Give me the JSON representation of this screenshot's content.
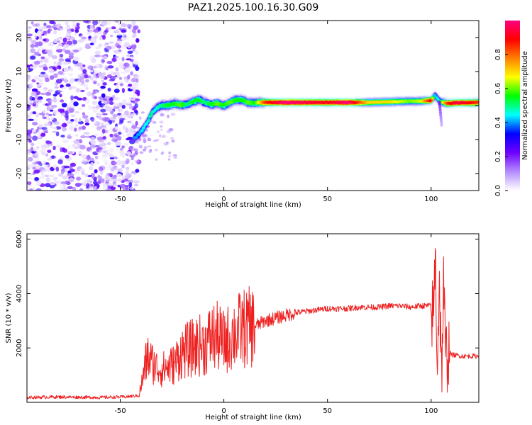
{
  "title": "PAZ1.2025.100.16.30.G09",
  "chart_data": [
    {
      "type": "heatmap",
      "xlabel": "Height of straight line (km)",
      "ylabel": "Frequency (Hz)",
      "xlim": [
        -95,
        123
      ],
      "ylim": [
        -25,
        25
      ],
      "xticks": [
        -50,
        0,
        50,
        100
      ],
      "yticks": [
        -20,
        -10,
        0,
        10,
        20
      ],
      "colorbar": {
        "label": "Normalized spectral amplitude",
        "range": [
          0,
          1
        ],
        "ticks": [
          0.0,
          0.2,
          0.4,
          0.6,
          0.8
        ],
        "colors": [
          "#ffffff",
          "#b48cff",
          "#7000ff",
          "#0000ff",
          "#00ffff",
          "#00ff00",
          "#ffff00",
          "#ff7f00",
          "#ff0000",
          "#ff0080"
        ]
      },
      "noise_region_x": [
        -95,
        -43
      ],
      "ridge": {
        "x": [
          -43,
          -41,
          -39,
          -37,
          -35,
          -33,
          -30,
          -27,
          -24,
          -21,
          -18,
          -15,
          -12,
          -9,
          -6,
          -3,
          0,
          3,
          6,
          9,
          12,
          15,
          20,
          30,
          40,
          50,
          60,
          70,
          80,
          90,
          95,
          100,
          102,
          104,
          108,
          112,
          118,
          123
        ],
        "freq": [
          -9.5,
          -8.5,
          -7,
          -5,
          -2.5,
          -1,
          0,
          0,
          0.5,
          0.2,
          0.3,
          1.1,
          1.7,
          0.8,
          0.3,
          0.7,
          0,
          0.9,
          1.7,
          1.6,
          0.8,
          0.8,
          0.9,
          0.9,
          0.9,
          0.9,
          0.9,
          0.9,
          1.1,
          1.3,
          1.3,
          1.5,
          3,
          1.2,
          0.6,
          0.8,
          0.8,
          0.9
        ],
        "amp": [
          0.4,
          0.4,
          0.45,
          0.45,
          0.5,
          0.45,
          0.5,
          0.55,
          0.55,
          0.6,
          0.5,
          0.55,
          0.55,
          0.5,
          0.55,
          0.6,
          0.55,
          0.6,
          0.55,
          0.55,
          0.6,
          0.55,
          0.85,
          1.0,
          0.95,
          0.9,
          1.0,
          0.7,
          0.7,
          0.6,
          0.65,
          0.9,
          0.4,
          0.5,
          0.85,
          0.95,
          0.9,
          0.85
        ]
      }
    },
    {
      "type": "line",
      "xlabel": "Height of straight line (km)",
      "ylabel": "SNR (10 * v/v)",
      "xlim": [
        -95,
        123
      ],
      "ylim": [
        0,
        6200
      ],
      "xticks": [
        -50,
        0,
        50,
        100
      ],
      "yticks": [
        2000,
        4000,
        6000
      ],
      "color": "#ee2020",
      "series": [
        {
          "x": [
            -95,
            -80,
            -60,
            -48,
            -41,
            -39,
            -37,
            -35,
            -33,
            -30,
            -27,
            -24,
            -21,
            -18,
            -15,
            -12,
            -9,
            -6,
            -3,
            0,
            3,
            6,
            9,
            12,
            15,
            20,
            25,
            30,
            35,
            40,
            45,
            50,
            55,
            60,
            65,
            70,
            75,
            80,
            85,
            90,
            95,
            100,
            101,
            102,
            103,
            104,
            105,
            106,
            107,
            108,
            110,
            115,
            120,
            123
          ],
          "y": [
            180,
            200,
            180,
            200,
            250,
            900,
            1700,
            1500,
            1300,
            1200,
            1300,
            1400,
            1800,
            1900,
            2000,
            2100,
            2100,
            2400,
            2400,
            2200,
            2400,
            2600,
            2700,
            2750,
            2800,
            3000,
            3100,
            3200,
            3300,
            3350,
            3400,
            3450,
            3450,
            3450,
            3500,
            3500,
            3500,
            3550,
            3550,
            3500,
            3550,
            3550,
            3000,
            5500,
            1500,
            4500,
            1000,
            4200,
            1500,
            1900,
            1750,
            1700,
            1700,
            1700
          ]
        }
      ]
    }
  ]
}
